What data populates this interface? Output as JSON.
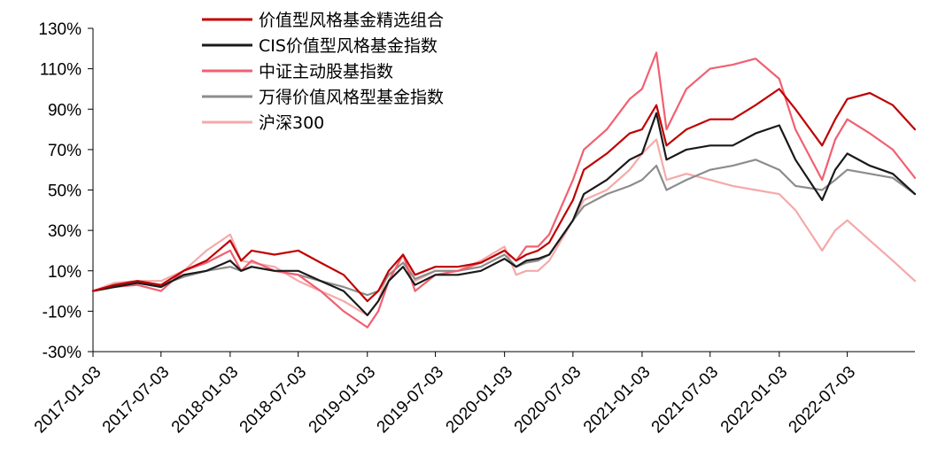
{
  "chart_data": {
    "type": "line",
    "title": "",
    "xlabel": "",
    "ylabel": "",
    "ylim": [
      -30,
      130
    ],
    "y_ticks": [
      -30,
      -10,
      10,
      30,
      50,
      70,
      90,
      110,
      130
    ],
    "y_tick_labels": [
      "-30%",
      "-10%",
      "10%",
      "30%",
      "50%",
      "70%",
      "90%",
      "110%",
      "130%"
    ],
    "x_range": [
      "2017-01-03",
      "2022-12-30"
    ],
    "x_ticks": [
      "2017-01-03",
      "2017-07-03",
      "2018-01-03",
      "2018-07-03",
      "2019-01-03",
      "2019-07-03",
      "2020-01-03",
      "2020-07-03",
      "2021-01-03",
      "2021-07-03",
      "2022-01-03",
      "2022-07-03"
    ],
    "grid": false,
    "legend_position": "top-center",
    "x": [
      "2017-01-03",
      "2017-03-01",
      "2017-05-01",
      "2017-07-03",
      "2017-09-01",
      "2017-11-01",
      "2018-01-03",
      "2018-02-01",
      "2018-03-01",
      "2018-05-01",
      "2018-07-03",
      "2018-09-01",
      "2018-11-01",
      "2019-01-03",
      "2019-02-01",
      "2019-03-01",
      "2019-04-08",
      "2019-05-10",
      "2019-07-03",
      "2019-09-01",
      "2019-11-01",
      "2020-01-03",
      "2020-02-03",
      "2020-03-01",
      "2020-04-01",
      "2020-05-01",
      "2020-07-03",
      "2020-08-01",
      "2020-10-01",
      "2020-12-01",
      "2021-01-03",
      "2021-02-10",
      "2021-03-09",
      "2021-05-01",
      "2021-07-03",
      "2021-09-01",
      "2021-11-01",
      "2022-01-03",
      "2022-02-15",
      "2022-04-27",
      "2022-06-01",
      "2022-07-03",
      "2022-09-01",
      "2022-11-01",
      "2022-12-30"
    ],
    "series": [
      {
        "name": "价值型风格基金精选组合",
        "color": "#c00000",
        "values": [
          0,
          3,
          5,
          3,
          10,
          15,
          25,
          15,
          20,
          18,
          20,
          14,
          8,
          -5,
          0,
          10,
          18,
          8,
          12,
          12,
          14,
          20,
          15,
          18,
          20,
          24,
          45,
          60,
          68,
          78,
          80,
          92,
          72,
          80,
          85,
          85,
          92,
          100,
          90,
          72,
          85,
          95,
          98,
          92,
          80
        ]
      },
      {
        "name": "CIS价值型风格基金指数",
        "color": "#1a1a1a",
        "values": [
          0,
          2,
          4,
          2,
          8,
          10,
          15,
          10,
          12,
          10,
          10,
          5,
          0,
          -12,
          -5,
          5,
          12,
          3,
          8,
          8,
          10,
          16,
          12,
          15,
          16,
          18,
          35,
          48,
          55,
          65,
          68,
          88,
          65,
          70,
          72,
          72,
          78,
          82,
          65,
          45,
          60,
          68,
          62,
          58,
          48
        ]
      },
      {
        "name": "中证主动股基指数",
        "color": "#f06070",
        "values": [
          0,
          2,
          3,
          0,
          10,
          14,
          20,
          10,
          15,
          10,
          8,
          0,
          -10,
          -18,
          -10,
          5,
          18,
          0,
          8,
          10,
          14,
          20,
          15,
          22,
          22,
          28,
          55,
          70,
          80,
          95,
          100,
          118,
          80,
          100,
          110,
          112,
          115,
          105,
          80,
          55,
          75,
          85,
          78,
          70,
          56
        ]
      },
      {
        "name": "万得价值风格型基金指数",
        "color": "#8c8c8c",
        "values": [
          0,
          3,
          4,
          3,
          7,
          10,
          12,
          10,
          12,
          10,
          8,
          5,
          2,
          -2,
          0,
          8,
          14,
          6,
          10,
          10,
          12,
          18,
          12,
          14,
          15,
          18,
          35,
          42,
          48,
          52,
          55,
          62,
          50,
          55,
          60,
          62,
          65,
          60,
          52,
          50,
          55,
          60,
          58,
          56,
          48
        ]
      },
      {
        "name": "沪深300",
        "color": "#f5a9a9",
        "values": [
          0,
          4,
          5,
          5,
          10,
          20,
          28,
          15,
          14,
          12,
          5,
          0,
          -5,
          -12,
          -5,
          10,
          18,
          5,
          10,
          10,
          15,
          22,
          8,
          10,
          10,
          15,
          35,
          45,
          50,
          60,
          68,
          75,
          55,
          58,
          55,
          52,
          50,
          48,
          40,
          20,
          30,
          35,
          25,
          15,
          5
        ]
      }
    ]
  }
}
